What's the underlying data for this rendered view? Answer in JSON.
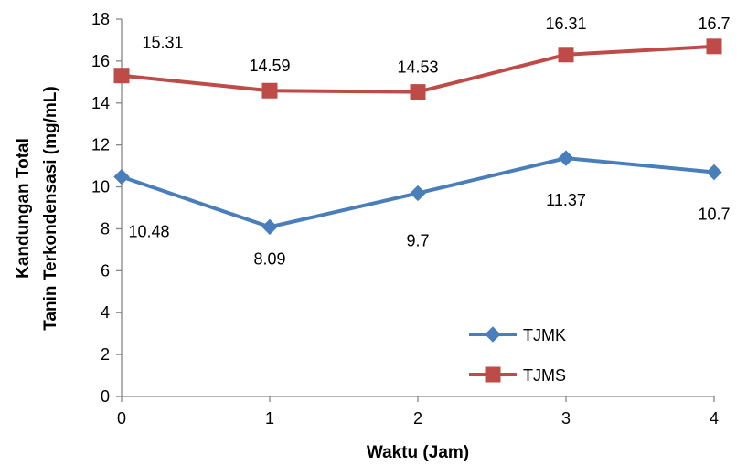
{
  "chart_data": {
    "type": "line",
    "x": [
      0,
      1,
      2,
      3,
      4
    ],
    "x_tick_labels": [
      "0",
      "1",
      "2",
      "3",
      "4"
    ],
    "y_tick_labels": [
      "0",
      "2",
      "4",
      "6",
      "8",
      "10",
      "12",
      "14",
      "16",
      "18"
    ],
    "ylim": [
      0,
      18
    ],
    "xlabel": "Waktu (Jam)",
    "ylabel_lines": [
      "Kandungan Total",
      "Tanin Terkondensasi (mg/mL)"
    ],
    "grid": false,
    "legend_position": "bottom-right",
    "series": [
      {
        "name": "TJMK",
        "marker": "diamond",
        "color": "#4a7ebb",
        "values": [
          10.48,
          8.09,
          9.7,
          11.37,
          10.7
        ],
        "labels": [
          "10.48",
          "8.09",
          "9.7",
          "11.37",
          "10.7"
        ]
      },
      {
        "name": "TJMS",
        "marker": "square",
        "color": "#be4b48",
        "values": [
          15.31,
          14.59,
          14.53,
          16.31,
          16.7
        ],
        "labels": [
          "15.31",
          "14.59",
          "14.53",
          "16.31",
          "16.7"
        ]
      }
    ]
  }
}
